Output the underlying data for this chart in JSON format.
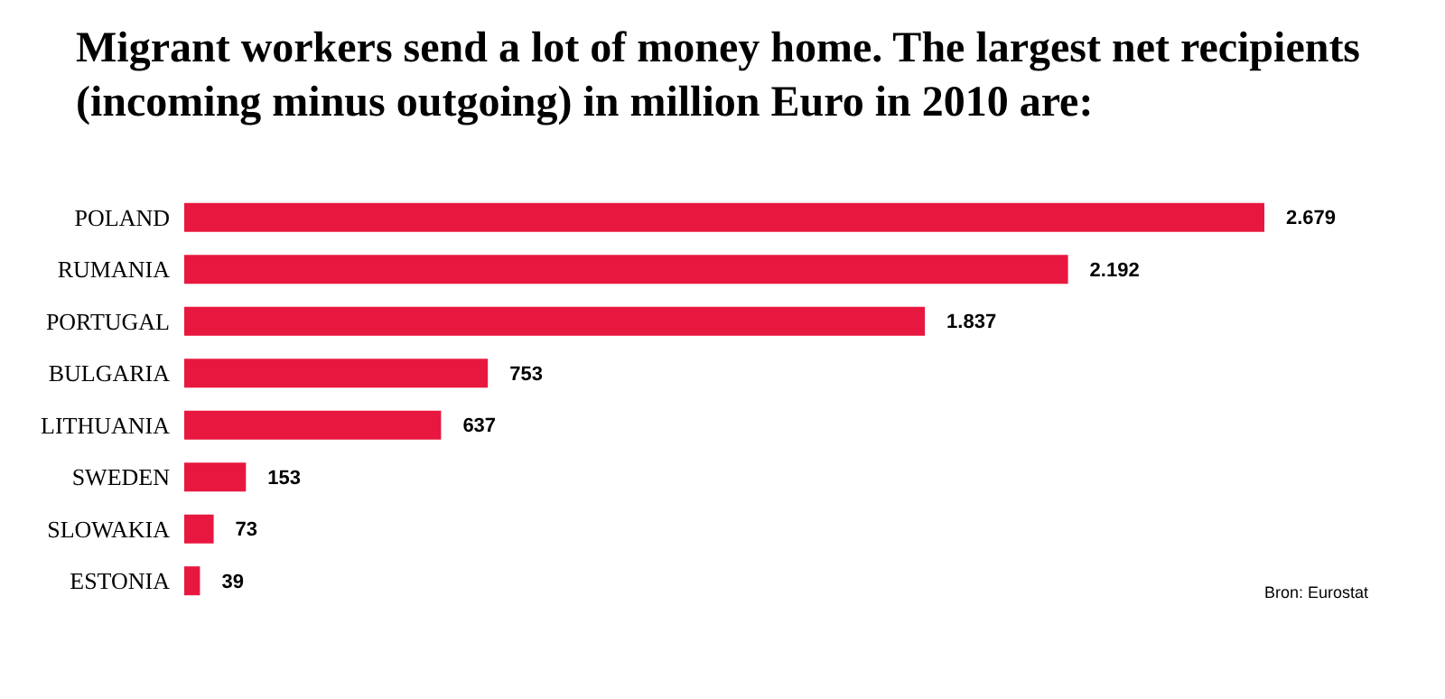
{
  "chart_data": {
    "type": "bar",
    "orientation": "horizontal",
    "title": "Migrant workers send a lot of money home. The largest net recipients (incoming minus outgoing) in million Euro in 2010 are:",
    "categories": [
      "POLAND",
      "RUMANIA",
      "PORTUGAL",
      "BULGARIA",
      "LITHUANIA",
      "SWEDEN",
      "SLOWAKIA",
      "ESTONIA"
    ],
    "values": [
      2679,
      2192,
      1837,
      753,
      637,
      153,
      73,
      39
    ],
    "value_labels": [
      "2.679",
      "2.192",
      "1.837",
      "753",
      "637",
      "153",
      "73",
      "39"
    ],
    "color": "#e8173f",
    "annotations": [
      "Bron: Eurostat"
    ]
  }
}
